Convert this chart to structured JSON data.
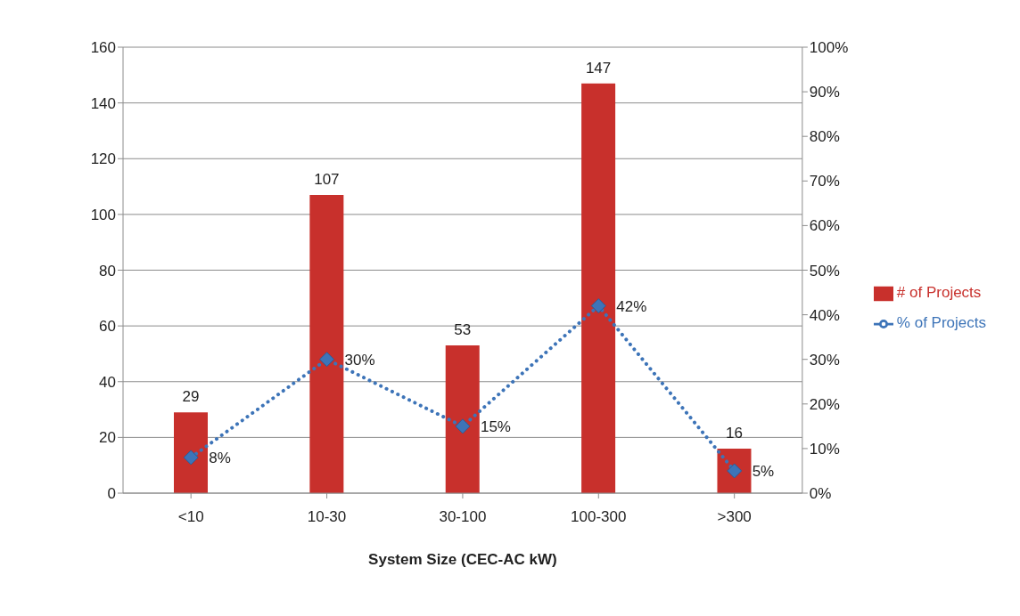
{
  "chart_data": {
    "type": "bar",
    "xlabel": "System Size (CEC-AC kW)",
    "categories": [
      "<10",
      "10-30",
      "30-100",
      "100-300",
      ">300"
    ],
    "series": [
      {
        "name": "# of Projects",
        "color": "#c8302c",
        "values": [
          29,
          107,
          53,
          147,
          16
        ],
        "value_labels": [
          "29",
          "107",
          "53",
          "147",
          "16"
        ]
      },
      {
        "name": "% of Projects",
        "type": "line",
        "axis": "y2",
        "color": "#3d74b8",
        "marker": "diamond",
        "line_style": "dotted",
        "values": [
          8,
          30,
          15,
          42,
          5
        ],
        "value_labels": [
          "8%",
          "30%",
          "15%",
          "42%",
          "5%"
        ]
      }
    ],
    "ylim": [
      0,
      160
    ],
    "yticks": [
      0,
      20,
      40,
      60,
      80,
      100,
      120,
      140,
      160
    ],
    "y2lim": [
      0,
      100
    ],
    "y2ticks": [
      {
        "value": 0,
        "label": "0%"
      },
      {
        "value": 10,
        "label": "10%"
      },
      {
        "value": 20,
        "label": "20%"
      },
      {
        "value": 30,
        "label": "30%"
      },
      {
        "value": 40,
        "label": "40%"
      },
      {
        "value": 50,
        "label": "50%"
      },
      {
        "value": 60,
        "label": "60%"
      },
      {
        "value": 70,
        "label": "70%"
      },
      {
        "value": 80,
        "label": "80%"
      },
      {
        "value": 90,
        "label": "90%"
      },
      {
        "value": 100,
        "label": "100%"
      }
    ],
    "grid": "y",
    "legend": "right"
  }
}
